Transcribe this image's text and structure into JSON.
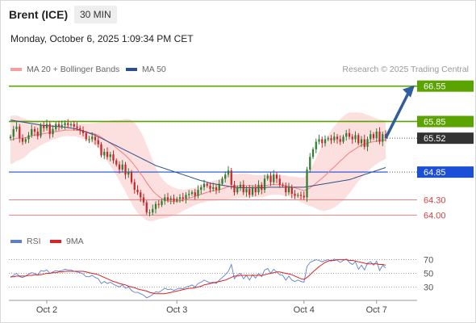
{
  "header": {
    "instrument": "Brent (ICE)",
    "timeframe": "30 MIN",
    "datetime": "Monday, October 6, 2025 1:09:34 PM CET",
    "credit": "Research © 2025 Trading Central"
  },
  "colors": {
    "bb_fill": "#fcd9d9",
    "ma20": "#f07f7f",
    "ma50": "#2c4f8f",
    "up": "#2e7d32",
    "down": "#c62828",
    "resistance": "#5aa300",
    "support_blue": "#1a4fd6",
    "support_red": "#f08080",
    "rsi": "#5b7fd6",
    "rsi_ma": "#e02020",
    "arrow": "#2f5d9e"
  },
  "legend": {
    "ma20_label": "MA 20 + Bollinger Bands",
    "ma50_label": "MA 50",
    "rsi_label": "RSI",
    "rsi_ma_label": "9MA"
  },
  "chart_data": [
    {
      "type": "candlestick",
      "title": "",
      "ylim": [
        63.75,
        66.72
      ],
      "x_ticks": [
        {
          "label": "Oct 2",
          "i": 12
        },
        {
          "label": "Oct 3",
          "i": 55
        },
        {
          "label": "Oct 4",
          "i": 97
        },
        {
          "label": "Oct 7",
          "i": 121
        }
      ],
      "closes": [
        65.55,
        65.7,
        65.75,
        65.52,
        65.45,
        65.5,
        65.58,
        65.7,
        65.65,
        65.56,
        65.78,
        65.72,
        65.8,
        65.6,
        65.7,
        65.8,
        65.75,
        65.78,
        65.82,
        65.78,
        65.8,
        65.75,
        65.72,
        65.68,
        65.62,
        65.5,
        65.5,
        65.55,
        65.48,
        65.4,
        65.18,
        65.25,
        65.15,
        65.2,
        65.08,
        65.0,
        64.9,
        65.0,
        64.8,
        64.85,
        64.65,
        64.5,
        64.45,
        64.35,
        64.25,
        64.05,
        64.05,
        64.12,
        64.22,
        64.2,
        64.28,
        64.35,
        64.3,
        64.33,
        64.28,
        64.32,
        64.35,
        64.32,
        64.4,
        64.42,
        64.45,
        64.38,
        64.5,
        64.55,
        64.62,
        64.58,
        64.52,
        64.55,
        64.5,
        64.62,
        64.72,
        64.8,
        64.88,
        64.6,
        64.45,
        64.55,
        64.6,
        64.45,
        64.52,
        64.4,
        64.55,
        64.45,
        64.6,
        64.5,
        64.72,
        64.78,
        64.65,
        64.8,
        64.72,
        64.6,
        64.58,
        64.45,
        64.55,
        64.42,
        64.38,
        64.4,
        64.38,
        64.35,
        64.9,
        65.15,
        65.3,
        65.45,
        65.5,
        65.42,
        65.5,
        65.52,
        65.48,
        65.55,
        65.5,
        65.45,
        65.55,
        65.62,
        65.55,
        65.5,
        65.58,
        65.42,
        65.5,
        65.35,
        65.5,
        65.6,
        65.52,
        65.65,
        65.45,
        65.6,
        65.52
      ],
      "ma20": [
        65.48,
        65.5,
        65.52,
        65.52,
        65.52,
        65.53,
        65.55,
        65.57,
        65.58,
        65.59,
        65.6,
        65.61,
        65.62,
        65.63,
        65.64,
        65.65,
        65.66,
        65.67,
        65.68,
        65.68,
        65.68,
        65.68,
        65.68,
        65.67,
        65.66,
        65.65,
        65.63,
        65.62,
        65.6,
        65.58,
        65.54,
        65.5,
        65.46,
        65.42,
        65.38,
        65.33,
        65.28,
        65.23,
        65.18,
        65.12,
        65.06,
        64.98,
        64.9,
        64.82,
        64.74,
        64.64,
        64.56,
        64.48,
        64.42,
        64.37,
        64.33,
        64.3,
        64.28,
        64.27,
        64.27,
        64.27,
        64.28,
        64.29,
        64.31,
        64.33,
        64.35,
        64.37,
        64.39,
        64.41,
        64.43,
        64.45,
        64.47,
        64.48,
        64.49,
        64.5,
        64.52,
        64.54,
        64.56,
        64.57,
        64.57,
        64.57,
        64.58,
        64.58,
        64.58,
        64.58,
        64.58,
        64.57,
        64.57,
        64.57,
        64.58,
        64.59,
        64.6,
        64.6,
        64.6,
        64.6,
        64.59,
        64.58,
        64.57,
        64.55,
        64.54,
        64.52,
        64.5,
        64.49,
        64.5,
        64.54,
        64.58,
        64.63,
        64.68,
        64.73,
        64.78,
        64.84,
        64.9,
        64.95,
        65.01,
        65.07,
        65.12,
        65.18,
        65.23,
        65.27,
        65.31,
        65.35,
        65.38,
        65.4,
        65.42,
        65.44,
        65.45,
        65.46,
        65.47,
        65.48,
        65.49
      ],
      "ma50": [
        65.88,
        65.87,
        65.86,
        65.85,
        65.84,
        65.83,
        65.82,
        65.81,
        65.8,
        65.79,
        65.78,
        65.77,
        65.77,
        65.76,
        65.76,
        65.75,
        65.75,
        65.74,
        65.74,
        65.73,
        65.72,
        65.71,
        65.7,
        65.68,
        65.66,
        65.64,
        65.62,
        65.6,
        65.58,
        65.55,
        65.52,
        65.49,
        65.46,
        65.43,
        65.4,
        65.37,
        65.34,
        65.31,
        65.28,
        65.25,
        65.22,
        65.19,
        65.16,
        65.13,
        65.1,
        65.07,
        65.04,
        65.01,
        64.98,
        64.96,
        64.94,
        64.92,
        64.9,
        64.88,
        64.86,
        64.84,
        64.82,
        64.8,
        64.78,
        64.76,
        64.74,
        64.72,
        64.7,
        64.68,
        64.67,
        64.65,
        64.63,
        64.62,
        64.61,
        64.6,
        64.59,
        64.58,
        64.57,
        64.56,
        64.55,
        64.54,
        64.54,
        64.54,
        64.54,
        64.54,
        64.54,
        64.54,
        64.54,
        64.54,
        64.54,
        64.55,
        64.55,
        64.55,
        64.55,
        64.55,
        64.55,
        64.55,
        64.55,
        64.55,
        64.55,
        64.55,
        64.55,
        64.55,
        64.56,
        64.57,
        64.58,
        64.59,
        64.6,
        64.61,
        64.62,
        64.63,
        64.64,
        64.65,
        64.66,
        64.67,
        64.68,
        64.69,
        64.7,
        64.72,
        64.74,
        64.76,
        64.78,
        64.8,
        64.82,
        64.84,
        64.86,
        64.88,
        64.9,
        64.92,
        64.94
      ],
      "bb_half_width": [
        0.48,
        0.47,
        0.45,
        0.43,
        0.4,
        0.37,
        0.33,
        0.3,
        0.28,
        0.25,
        0.22,
        0.2,
        0.18,
        0.16,
        0.15,
        0.14,
        0.13,
        0.12,
        0.12,
        0.12,
        0.12,
        0.12,
        0.13,
        0.14,
        0.15,
        0.16,
        0.18,
        0.2,
        0.22,
        0.25,
        0.3,
        0.35,
        0.4,
        0.45,
        0.5,
        0.55,
        0.6,
        0.66,
        0.72,
        0.78,
        0.82,
        0.85,
        0.85,
        0.83,
        0.8,
        0.74,
        0.68,
        0.6,
        0.52,
        0.45,
        0.4,
        0.36,
        0.33,
        0.3,
        0.27,
        0.25,
        0.23,
        0.21,
        0.2,
        0.19,
        0.18,
        0.17,
        0.17,
        0.17,
        0.18,
        0.18,
        0.19,
        0.2,
        0.2,
        0.21,
        0.22,
        0.23,
        0.24,
        0.24,
        0.24,
        0.24,
        0.24,
        0.24,
        0.24,
        0.23,
        0.22,
        0.22,
        0.22,
        0.22,
        0.22,
        0.21,
        0.2,
        0.2,
        0.2,
        0.2,
        0.2,
        0.2,
        0.2,
        0.21,
        0.22,
        0.23,
        0.24,
        0.26,
        0.3,
        0.36,
        0.42,
        0.5,
        0.58,
        0.64,
        0.7,
        0.74,
        0.78,
        0.8,
        0.82,
        0.83,
        0.83,
        0.82,
        0.8,
        0.76,
        0.72,
        0.68,
        0.64,
        0.6,
        0.56,
        0.52,
        0.48,
        0.45,
        0.42,
        0.4,
        0.38
      ],
      "levels": [
        {
          "label": "66.55",
          "value": 66.55,
          "kind": "resistance"
        },
        {
          "label": "65.85",
          "value": 65.85,
          "kind": "resistance"
        },
        {
          "label": "65.52",
          "value": 65.52,
          "kind": "last"
        },
        {
          "label": "64.85",
          "value": 64.85,
          "kind": "support_blue"
        },
        {
          "label": "64.30",
          "value": 64.3,
          "kind": "support_red"
        },
        {
          "label": "64.00",
          "value": 64.0,
          "kind": "support_red"
        }
      ],
      "arrow": {
        "from_i": 124,
        "from_y": 65.52,
        "to_y": 66.55
      }
    },
    {
      "type": "line",
      "title": "",
      "ylim": [
        15,
        85
      ],
      "y_ticks": [
        70,
        50,
        30
      ],
      "series": [
        {
          "name": "RSI",
          "values": [
            44,
            47,
            50,
            45,
            44,
            46,
            49,
            51,
            50,
            47,
            54,
            53,
            55,
            50,
            52,
            54,
            53,
            54,
            56,
            55,
            55,
            53,
            52,
            51,
            49,
            45,
            45,
            47,
            44,
            42,
            35,
            38,
            35,
            37,
            34,
            32,
            30,
            33,
            28,
            30,
            25,
            22,
            22,
            20,
            18,
            14,
            16,
            19,
            23,
            22,
            25,
            28,
            26,
            27,
            25,
            27,
            28,
            27,
            30,
            31,
            33,
            30,
            35,
            37,
            40,
            38,
            36,
            37,
            35,
            40,
            44,
            48,
            53,
            63,
            42,
            48,
            50,
            42,
            47,
            40,
            48,
            43,
            50,
            45,
            55,
            57,
            50,
            56,
            52,
            48,
            47,
            40,
            46,
            40,
            38,
            40,
            38,
            37,
            60,
            66,
            68,
            70,
            69,
            67,
            69,
            70,
            68,
            71,
            69,
            66,
            69,
            71,
            66,
            63,
            67,
            56,
            62,
            55,
            65,
            67,
            62,
            68,
            54,
            62,
            58
          ]
        },
        {
          "name": "9MA",
          "values": [
            45,
            45,
            46,
            46,
            46,
            46,
            47,
            47,
            48,
            48,
            48,
            49,
            50,
            50,
            51,
            51,
            52,
            52,
            53,
            53,
            53,
            53,
            53,
            53,
            53,
            52,
            51,
            50,
            49,
            48,
            46,
            44,
            42,
            40,
            38,
            37,
            35,
            34,
            33,
            31,
            30,
            29,
            27,
            26,
            25,
            24,
            22,
            21,
            20,
            20,
            20,
            20,
            21,
            22,
            23,
            24,
            25,
            26,
            27,
            28,
            28,
            29,
            30,
            31,
            33,
            34,
            35,
            36,
            37,
            38,
            39,
            40,
            42,
            44,
            46,
            46,
            47,
            47,
            47,
            47,
            47,
            47,
            47,
            47,
            48,
            49,
            50,
            51,
            52,
            52,
            51,
            50,
            49,
            48,
            46,
            44,
            42,
            41,
            44,
            48,
            52,
            56,
            60,
            63,
            66,
            68,
            69,
            69,
            70,
            70,
            70,
            70,
            69,
            69,
            68,
            67,
            66,
            65,
            64,
            64,
            64,
            64,
            63,
            63,
            62
          ]
        }
      ]
    }
  ]
}
